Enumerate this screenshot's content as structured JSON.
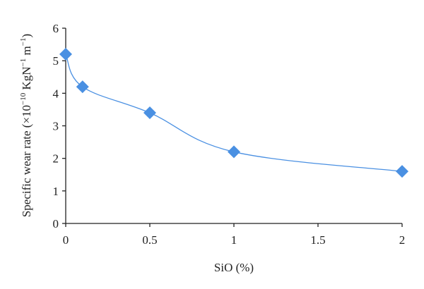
{
  "chart_data": {
    "type": "scatter",
    "title": "",
    "xlabel": "SiO (%)",
    "ylabel": "Specific wear rate (×10",
    "ylabel_exp": "−10",
    "ylabel_units": " KgN",
    "ylabel_units_exp": "−1",
    "ylabel_end": " m",
    "ylabel_end_exp": "−1",
    "ylabel_close": ")",
    "xlim": [
      0,
      2
    ],
    "ylim": [
      0,
      6
    ],
    "x_ticks": [
      "0",
      "0.5",
      "1",
      "1.5",
      "2"
    ],
    "y_ticks": [
      "0",
      "1",
      "2",
      "3",
      "4",
      "5",
      "6"
    ],
    "grid": false,
    "legend": "none",
    "color": "#4a90e2",
    "marker": "diamond",
    "line": "smooth",
    "series": [
      {
        "x": [
          0,
          0.1,
          0.5,
          1,
          2
        ],
        "y": [
          5.2,
          4.2,
          3.4,
          2.2,
          1.6
        ]
      }
    ]
  }
}
